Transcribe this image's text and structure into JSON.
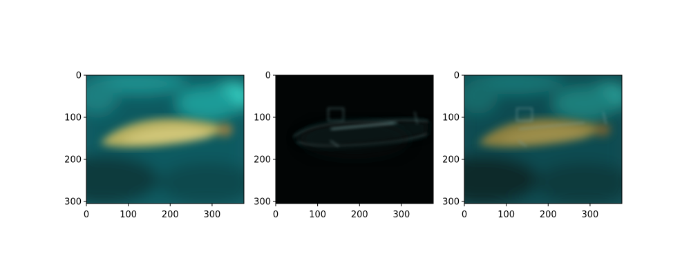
{
  "figure": {
    "layout": "1x3 image panels",
    "background": "#ffffff"
  },
  "chart_data": [
    {
      "type": "image",
      "panel": "left",
      "content": "blurred fish underwater",
      "xlim": [
        0,
        376
      ],
      "ylim": [
        305,
        0
      ],
      "x_ticks": [
        0,
        100,
        200,
        300
      ],
      "y_ticks": [
        0,
        100,
        200,
        300
      ],
      "x_tick_labels": [
        "0",
        "100",
        "200",
        "300"
      ],
      "y_tick_labels": [
        "0",
        "100",
        "200",
        "300"
      ],
      "colors": {
        "water": "#0f5f66",
        "highlight": "#38d6c8",
        "subject": "#b8b060",
        "dark": "#0a2f30"
      }
    },
    {
      "type": "image",
      "panel": "middle",
      "content": "submarine edges on black background",
      "xlim": [
        0,
        376
      ],
      "ylim": [
        305,
        0
      ],
      "x_ticks": [
        0,
        100,
        200,
        300
      ],
      "y_ticks": [
        0,
        100,
        200,
        300
      ],
      "x_tick_labels": [
        "0",
        "100",
        "200",
        "300"
      ],
      "y_tick_labels": [
        "0",
        "100",
        "200",
        "300"
      ],
      "colors": {
        "background": "#020505",
        "edges": "#5a7a7a",
        "subject": "#142222"
      }
    },
    {
      "type": "image",
      "panel": "right",
      "content": "blend of fish and submarine",
      "xlim": [
        0,
        376
      ],
      "ylim": [
        305,
        0
      ],
      "x_ticks": [
        0,
        100,
        200,
        300
      ],
      "y_ticks": [
        0,
        100,
        200,
        300
      ],
      "x_tick_labels": [
        "0",
        "100",
        "200",
        "300"
      ],
      "y_tick_labels": [
        "0",
        "100",
        "200",
        "300"
      ],
      "colors": {
        "water": "#0e4f55",
        "highlight": "#2a9f98",
        "subject": "#8c8040",
        "dark": "#08292b"
      }
    }
  ]
}
